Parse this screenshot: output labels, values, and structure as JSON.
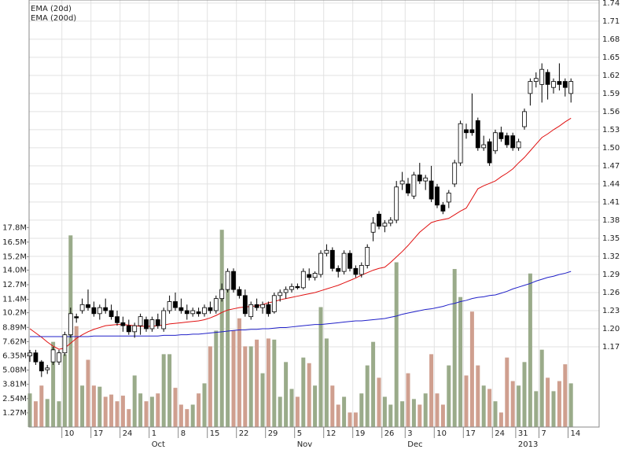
{
  "chart_data": {
    "type": "candlestick",
    "categories": [
      null,
      null,
      null,
      null,
      null,
      null,
      "10",
      null,
      null,
      null,
      null,
      "17",
      null,
      null,
      null,
      null,
      "24",
      null,
      null,
      null,
      null,
      "1",
      null,
      null,
      null,
      null,
      "8",
      null,
      null,
      null,
      null,
      "15",
      null,
      null,
      null,
      null,
      "22",
      null,
      null,
      null,
      null,
      "29",
      null,
      null,
      null,
      null,
      "5",
      null,
      null,
      null,
      null,
      "12",
      null,
      null,
      null,
      null,
      "19",
      null,
      null,
      null,
      null,
      "26",
      null,
      null,
      null,
      "3",
      null,
      null,
      null,
      null,
      "10",
      null,
      null,
      null,
      null,
      "17",
      null,
      null,
      null,
      null,
      "24",
      null,
      null,
      null,
      "31",
      null,
      null,
      null,
      "7",
      null,
      null,
      null,
      null,
      "14"
    ],
    "months": [
      null,
      null,
      null,
      null,
      null,
      null,
      null,
      null,
      null,
      null,
      null,
      null,
      null,
      null,
      null,
      null,
      null,
      null,
      null,
      null,
      null,
      "Oct",
      null,
      null,
      null,
      null,
      null,
      null,
      null,
      null,
      null,
      null,
      null,
      null,
      null,
      null,
      null,
      null,
      null,
      null,
      null,
      null,
      null,
      null,
      null,
      null,
      "Nov",
      null,
      null,
      null,
      null,
      null,
      null,
      null,
      null,
      null,
      null,
      null,
      null,
      null,
      null,
      null,
      null,
      null,
      null,
      "Dec",
      null,
      null,
      null,
      null,
      null,
      null,
      null,
      null,
      null,
      null,
      null,
      null,
      null,
      null,
      null,
      null,
      null,
      null,
      "2013",
      null,
      null,
      null,
      null,
      null,
      null,
      null,
      null,
      null
    ],
    "open": [
      1.155,
      1.16,
      1.145,
      1.132,
      1.145,
      1.145,
      1.16,
      1.19,
      1.22,
      1.23,
      1.24,
      1.235,
      1.225,
      1.235,
      1.23,
      1.22,
      1.21,
      1.205,
      1.195,
      1.205,
      1.215,
      1.2,
      1.215,
      1.2,
      1.23,
      1.245,
      1.235,
      1.23,
      1.225,
      1.228,
      1.225,
      1.235,
      1.23,
      1.25,
      1.265,
      1.295,
      1.265,
      1.255,
      1.22,
      1.24,
      1.235,
      1.24,
      1.228,
      1.255,
      1.26,
      1.265,
      1.27,
      1.268,
      1.29,
      1.285,
      1.29,
      1.325,
      1.33,
      1.3,
      1.295,
      1.325,
      1.3,
      1.29,
      1.305,
      1.36,
      1.39,
      1.37,
      1.375,
      1.38,
      1.44,
      1.44,
      1.42,
      1.455,
      1.445,
      1.445,
      1.435,
      1.405,
      1.41,
      1.44,
      1.475,
      1.53,
      1.53,
      1.545,
      1.5,
      1.51,
      1.495,
      1.525,
      1.52,
      1.52,
      1.5,
      1.535,
      1.59,
      1.61,
      1.605,
      1.625,
      1.6,
      1.61,
      1.61,
      1.59
    ],
    "high": [
      1.165,
      1.165,
      1.148,
      1.14,
      1.17,
      1.165,
      1.195,
      1.235,
      1.225,
      1.25,
      1.265,
      1.245,
      1.24,
      1.25,
      1.24,
      1.23,
      1.22,
      1.215,
      1.21,
      1.225,
      1.22,
      1.22,
      1.225,
      1.235,
      1.255,
      1.26,
      1.25,
      1.24,
      1.235,
      1.235,
      1.24,
      1.245,
      1.255,
      1.275,
      1.3,
      1.3,
      1.27,
      1.265,
      1.245,
      1.25,
      1.245,
      1.245,
      1.26,
      1.265,
      1.27,
      1.275,
      1.275,
      1.3,
      1.3,
      1.295,
      1.33,
      1.34,
      1.335,
      1.305,
      1.33,
      1.33,
      1.305,
      1.31,
      1.34,
      1.385,
      1.395,
      1.38,
      1.385,
      1.445,
      1.46,
      1.45,
      1.46,
      1.475,
      1.455,
      1.47,
      1.44,
      1.41,
      1.43,
      1.48,
      1.545,
      1.54,
      1.59,
      1.55,
      1.52,
      1.515,
      1.53,
      1.535,
      1.525,
      1.525,
      1.515,
      1.565,
      1.615,
      1.625,
      1.64,
      1.63,
      1.615,
      1.64,
      1.615,
      1.615
    ],
    "low": [
      1.145,
      1.14,
      1.12,
      1.125,
      1.14,
      1.14,
      1.155,
      1.185,
      1.21,
      1.225,
      1.23,
      1.22,
      1.215,
      1.225,
      1.215,
      1.205,
      1.195,
      1.19,
      1.185,
      1.19,
      1.195,
      1.195,
      1.2,
      1.195,
      1.225,
      1.23,
      1.225,
      1.215,
      1.22,
      1.22,
      1.22,
      1.225,
      1.225,
      1.245,
      1.26,
      1.26,
      1.25,
      1.22,
      1.215,
      1.23,
      1.225,
      1.22,
      1.225,
      1.245,
      1.25,
      1.26,
      1.265,
      1.265,
      1.28,
      1.28,
      1.285,
      1.32,
      1.295,
      1.285,
      1.29,
      1.295,
      1.285,
      1.285,
      1.3,
      1.345,
      1.365,
      1.36,
      1.37,
      1.375,
      1.43,
      1.42,
      1.415,
      1.44,
      1.43,
      1.41,
      1.4,
      1.39,
      1.4,
      1.435,
      1.47,
      1.515,
      1.52,
      1.495,
      1.495,
      1.47,
      1.49,
      1.51,
      1.5,
      1.495,
      1.495,
      1.53,
      1.57,
      1.6,
      1.575,
      1.58,
      1.59,
      1.595,
      1.585,
      1.575
    ],
    "close": [
      1.16,
      1.145,
      1.13,
      1.135,
      1.165,
      1.16,
      1.19,
      1.225,
      1.218,
      1.24,
      1.235,
      1.225,
      1.235,
      1.23,
      1.22,
      1.21,
      1.205,
      1.195,
      1.205,
      1.22,
      1.2,
      1.215,
      1.205,
      1.23,
      1.245,
      1.235,
      1.23,
      1.225,
      1.23,
      1.225,
      1.235,
      1.23,
      1.25,
      1.265,
      1.295,
      1.265,
      1.255,
      1.225,
      1.24,
      1.235,
      1.24,
      1.225,
      1.255,
      1.26,
      1.265,
      1.27,
      1.268,
      1.295,
      1.285,
      1.292,
      1.325,
      1.33,
      1.3,
      1.295,
      1.325,
      1.3,
      1.29,
      1.305,
      1.335,
      1.375,
      1.37,
      1.375,
      1.38,
      1.435,
      1.445,
      1.425,
      1.455,
      1.445,
      1.45,
      1.415,
      1.405,
      1.395,
      1.425,
      1.475,
      1.54,
      1.525,
      1.525,
      1.5,
      1.505,
      1.475,
      1.525,
      1.515,
      1.505,
      1.5,
      1.51,
      1.56,
      1.61,
      1.615,
      1.63,
      1.605,
      1.61,
      1.605,
      1.6,
      1.61
    ],
    "up_color": "#ffffff",
    "down_color": "#000000",
    "ylim": [
      1.037,
      1.745
    ],
    "yticks": [
      1.74,
      1.71,
      1.68,
      1.65,
      1.62,
      1.59,
      1.56,
      1.53,
      {
        "value": 1.5,
        "label": "1.50"
      },
      1.47,
      1.44,
      1.41,
      1.38,
      1.35,
      1.32,
      1.29,
      1.26,
      1.23,
      {
        "value": 1.2,
        "label": "1.20"
      },
      1.17
    ],
    "grid": true,
    "legend": "upper left",
    "series": [
      {
        "name": "EMA (20d)",
        "color": "#e01010",
        "values": [
          1.2,
          1.193,
          1.186,
          1.178,
          1.171,
          1.166,
          1.168,
          1.176,
          1.184,
          1.19,
          1.195,
          1.199,
          1.202,
          1.205,
          1.206,
          1.207,
          1.207,
          1.206,
          1.205,
          1.204,
          1.204,
          1.204,
          1.205,
          1.206,
          1.208,
          1.209,
          1.21,
          1.211,
          1.212,
          1.213,
          1.215,
          1.218,
          1.222,
          1.227,
          1.231,
          1.233,
          1.235,
          1.236,
          1.237,
          1.238,
          1.24,
          1.243,
          1.245,
          1.248,
          1.25,
          1.252,
          1.254,
          1.256,
          1.258,
          1.26,
          1.263,
          1.266,
          1.269,
          1.272,
          1.276,
          1.28,
          1.284,
          1.289,
          1.293,
          1.297,
          1.3,
          1.302,
          1.31,
          1.319,
          1.328,
          1.338,
          1.349,
          1.36,
          1.368,
          1.376,
          1.379,
          1.381,
          1.383,
          1.389,
          1.395,
          1.4,
          1.416,
          1.432,
          1.437,
          1.441,
          1.445,
          1.452,
          1.458,
          1.465,
          1.475,
          1.484,
          1.495,
          1.506,
          1.517,
          1.523,
          1.53,
          1.536,
          1.543,
          1.549
        ]
      },
      {
        "name": "EMA (200d)",
        "color": "#2020c8",
        "values": [
          1.187,
          1.187,
          1.187,
          1.187,
          1.187,
          1.187,
          1.187,
          1.187,
          1.187,
          1.187,
          1.187,
          1.188,
          1.188,
          1.188,
          1.188,
          1.188,
          1.188,
          1.188,
          1.188,
          1.188,
          1.188,
          1.188,
          1.188,
          1.189,
          1.189,
          1.189,
          1.19,
          1.19,
          1.191,
          1.191,
          1.192,
          1.193,
          1.194,
          1.195,
          1.196,
          1.197,
          1.198,
          1.198,
          1.199,
          1.199,
          1.2,
          1.2,
          1.201,
          1.202,
          1.202,
          1.203,
          1.204,
          1.205,
          1.206,
          1.207,
          1.207,
          1.208,
          1.209,
          1.21,
          1.211,
          1.212,
          1.213,
          1.213,
          1.214,
          1.215,
          1.216,
          1.217,
          1.219,
          1.221,
          1.224,
          1.226,
          1.228,
          1.23,
          1.232,
          1.233,
          1.235,
          1.237,
          1.24,
          1.242,
          1.245,
          1.247,
          1.25,
          1.252,
          1.253,
          1.255,
          1.256,
          1.259,
          1.262,
          1.266,
          1.269,
          1.272,
          1.275,
          1.279,
          1.282,
          1.285,
          1.287,
          1.29,
          1.292,
          1.295
        ]
      }
    ],
    "volume": {
      "up_color": "#9aab8a",
      "down_color": "#cf9f8f",
      "ylim": [
        0,
        38100000
      ],
      "yticks": [
        {
          "value": 1270000,
          "label": "1.27M"
        },
        {
          "value": 2540000,
          "label": "2.54M"
        },
        {
          "value": 3810000,
          "label": "3.81M"
        },
        {
          "value": 5080000,
          "label": "5.08M"
        },
        {
          "value": 6350000,
          "label": "6.35M"
        },
        {
          "value": 7620000,
          "label": "7.62M"
        },
        {
          "value": 8890000,
          "label": "8.89M"
        },
        {
          "value": 10200000,
          "label": "10.2M"
        },
        {
          "value": 11400000,
          "label": "11.4M"
        },
        {
          "value": 12700000,
          "label": "12.7M"
        },
        {
          "value": 14000000,
          "label": "14.0M"
        },
        {
          "value": 15200000,
          "label": "15.2M"
        },
        {
          "value": 16500000,
          "label": "16.5M"
        },
        {
          "value": 17800000,
          "label": "17.8M"
        }
      ],
      "values": [
        3000000,
        2300000,
        3700000,
        2500000,
        7600000,
        2300000,
        6500000,
        17100000,
        9000000,
        3700000,
        6000000,
        3700000,
        3600000,
        2700000,
        2900000,
        2300000,
        2800000,
        1600000,
        4600000,
        3000000,
        2300000,
        2700000,
        3000000,
        6500000,
        6500000,
        3500000,
        2000000,
        1600000,
        2000000,
        3000000,
        3900000,
        7200000,
        8600000,
        17600000,
        12500000,
        8600000,
        9700000,
        7200000,
        7200000,
        7800000,
        4800000,
        7900000,
        7800000,
        2700000,
        5800000,
        3400000,
        2700000,
        6200000,
        5700000,
        3700000,
        10700000,
        7900000,
        3700000,
        2000000,
        2700000,
        1300000,
        1300000,
        3000000,
        5500000,
        7600000,
        4400000,
        2700000,
        2000000,
        14700000,
        2300000,
        4800000,
        2500000,
        2000000,
        3000000,
        6500000,
        3000000,
        2000000,
        5500000,
        14100000,
        11600000,
        4600000,
        10300000,
        5500000,
        3700000,
        3400000,
        2300000,
        1300000,
        6200000,
        4100000,
        3700000,
        5800000,
        13700000,
        3200000,
        6900000,
        4400000,
        3200000,
        4100000,
        5600000,
        3900000
      ]
    }
  }
}
